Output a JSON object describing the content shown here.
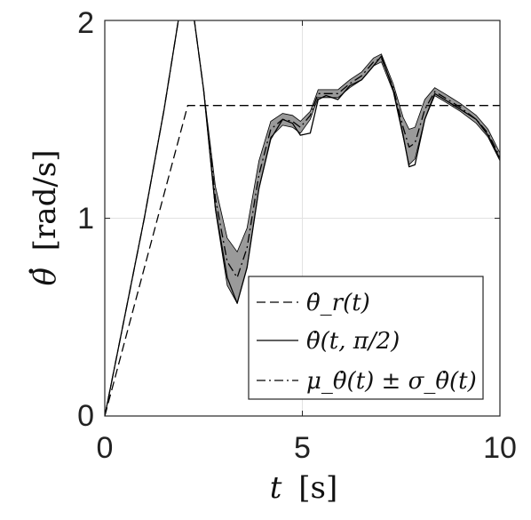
{
  "chart_data": {
    "type": "line",
    "xlabel_var": "t",
    "xlabel_unit": "[s]",
    "ylabel_var": "θ",
    "ylabel_unit": "[rad/s]",
    "xlim": [
      0,
      10
    ],
    "ylim": [
      0,
      2
    ],
    "x_ticks": [
      "0",
      "5",
      "10"
    ],
    "y_ticks": [
      "0",
      "1",
      "2"
    ],
    "grid": true,
    "legend_position": "bottom-right",
    "legend": [
      {
        "label": "θ̇_r(t)",
        "style": "dashed"
      },
      {
        "label": "θ̇(t, π/2)",
        "style": "solid"
      },
      {
        "label": "μ_θ̇(t) ± σ_θ̇(t)",
        "style": "dash-dot"
      }
    ],
    "series": [
      {
        "name": "θ̇_r(t)",
        "style": "dashed",
        "points": [
          [
            0,
            0
          ],
          [
            2.1,
            1.57
          ],
          [
            10,
            1.57
          ]
        ]
      },
      {
        "name": "θ̇(t, π/2)",
        "style": "solid",
        "points": [
          [
            0,
            0
          ],
          [
            0.5,
            0.5
          ],
          [
            1.0,
            1.0
          ],
          [
            1.5,
            1.55
          ],
          [
            1.9,
            2.05
          ],
          [
            2.2,
            2.1
          ],
          [
            2.5,
            1.65
          ],
          [
            2.8,
            1.05
          ],
          [
            3.1,
            0.7
          ],
          [
            3.35,
            0.57
          ],
          [
            3.6,
            0.75
          ],
          [
            3.9,
            1.15
          ],
          [
            4.2,
            1.4
          ],
          [
            4.5,
            1.5
          ],
          [
            4.75,
            1.48
          ],
          [
            4.95,
            1.42
          ],
          [
            5.2,
            1.43
          ],
          [
            5.4,
            1.6
          ],
          [
            5.6,
            1.62
          ],
          [
            5.9,
            1.6
          ],
          [
            6.2,
            1.67
          ],
          [
            6.5,
            1.7
          ],
          [
            6.8,
            1.77
          ],
          [
            7.0,
            1.82
          ],
          [
            7.3,
            1.65
          ],
          [
            7.55,
            1.42
          ],
          [
            7.7,
            1.26
          ],
          [
            7.85,
            1.27
          ],
          [
            8.1,
            1.5
          ],
          [
            8.35,
            1.63
          ],
          [
            8.6,
            1.6
          ],
          [
            9.0,
            1.55
          ],
          [
            9.4,
            1.5
          ],
          [
            9.7,
            1.42
          ],
          [
            10,
            1.3
          ]
        ]
      },
      {
        "name": "μ_θ̇(t) ± σ_θ̇(t)",
        "style": "dash-dot",
        "points": [
          [
            0,
            0
          ],
          [
            0.5,
            0.5
          ],
          [
            1.0,
            1.0
          ],
          [
            1.5,
            1.55
          ],
          [
            1.9,
            2.05
          ],
          [
            2.2,
            2.1
          ],
          [
            2.5,
            1.65
          ],
          [
            2.8,
            1.1
          ],
          [
            3.1,
            0.78
          ],
          [
            3.35,
            0.7
          ],
          [
            3.6,
            0.85
          ],
          [
            3.9,
            1.22
          ],
          [
            4.2,
            1.45
          ],
          [
            4.5,
            1.5
          ],
          [
            4.75,
            1.49
          ],
          [
            4.95,
            1.46
          ],
          [
            5.2,
            1.52
          ],
          [
            5.4,
            1.63
          ],
          [
            5.6,
            1.63
          ],
          [
            5.9,
            1.63
          ],
          [
            6.2,
            1.68
          ],
          [
            6.5,
            1.72
          ],
          [
            6.8,
            1.79
          ],
          [
            7.0,
            1.81
          ],
          [
            7.3,
            1.66
          ],
          [
            7.55,
            1.46
          ],
          [
            7.7,
            1.36
          ],
          [
            7.85,
            1.38
          ],
          [
            8.1,
            1.55
          ],
          [
            8.35,
            1.64
          ],
          [
            8.6,
            1.61
          ],
          [
            9.0,
            1.56
          ],
          [
            9.4,
            1.5
          ],
          [
            9.7,
            1.43
          ],
          [
            10,
            1.31
          ]
        ],
        "sigma": [
          0,
          0,
          0,
          0,
          0,
          0,
          0,
          0.06,
          0.12,
          0.13,
          0.1,
          0.07,
          0.04,
          0.03,
          0.03,
          0.03,
          0.02,
          0.02,
          0.02,
          0.02,
          0.02,
          0.02,
          0.02,
          0.02,
          0.02,
          0.05,
          0.09,
          0.08,
          0.05,
          0.02,
          0.02,
          0.02,
          0.02,
          0.02,
          0.02
        ]
      }
    ]
  },
  "colors": {
    "band_fill": "#9a9a9a",
    "line": "#000000",
    "grid": "#e2e2e2",
    "axes": "#262626"
  }
}
